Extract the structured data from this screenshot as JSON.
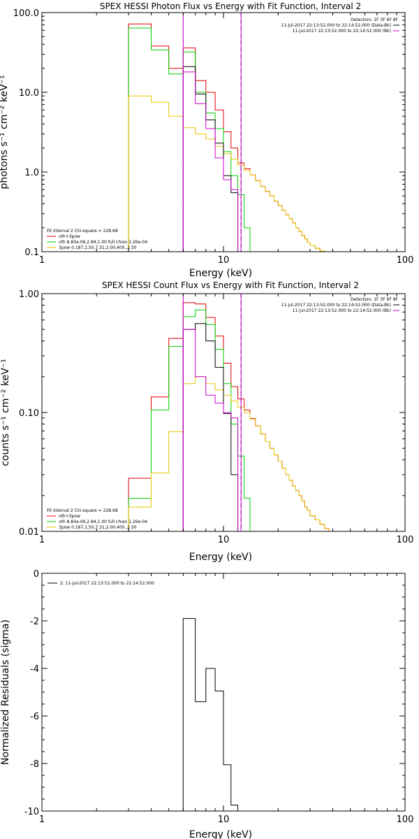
{
  "chart_data": [
    {
      "type": "line",
      "title": "SPEX HESSI Photon Flux vs Energy with Fit Function, Interval 2",
      "xlabel": "Energy (keV)",
      "ylabel": "photons s⁻¹ cm⁻² keV⁻¹",
      "xscale": "log",
      "yscale": "log",
      "xlim": [
        1,
        100
      ],
      "ylim": [
        0.1,
        100
      ],
      "xticks": [
        "1",
        "10",
        "100"
      ],
      "yticks": [
        "0.1",
        "1.0",
        "10.0",
        "100.0"
      ],
      "vlines": [
        {
          "x": 6.0,
          "style": "dotted",
          "color": "#000000"
        },
        {
          "x": 12.5,
          "style": "dashed",
          "color": "#000000"
        },
        {
          "x": 6.0,
          "style": "solid",
          "color": "#d000d0"
        },
        {
          "x": 12.5,
          "style": "solid",
          "color": "#d000d0"
        }
      ],
      "info": {
        "detectors": "Detectors: 1F 3F 6F 8F",
        "lines": [
          {
            "text": "11-Jul-2017 22:13:52.000 to 22:14:52.000 (Data-Bk)",
            "color": "#000000"
          },
          {
            "text": "11-Jul-2017 22:13:52.000 to 22:14:52.000 (Bk)",
            "color": "#d000d0"
          }
        ]
      },
      "legend": {
        "position": "bottom-left",
        "header": "Fit Interval 2   Chi-square = 228.68",
        "entries": [
          {
            "text": "vth+3pow",
            "color": "#e00000"
          },
          {
            "text": "vth 8.83e-06,2.84,1.00  full chian 1.26e-04",
            "color": "#00d000"
          },
          {
            "text": "3pow 0.187,1.50,7.31,2.00,400.,2.50",
            "color": "#e8c800"
          }
        ]
      },
      "series": [
        {
          "color": "#e00000",
          "edges": [
            3,
            4,
            5,
            6,
            7,
            8,
            9,
            10,
            11,
            12,
            13,
            14,
            15,
            16,
            17,
            18,
            19,
            20,
            21,
            22,
            23,
            24,
            25,
            26,
            27,
            28,
            29,
            30,
            32,
            34,
            36,
            38,
            40
          ],
          "values": [
            72,
            38,
            20,
            36,
            14,
            10,
            6,
            3.2,
            2.0,
            1.3,
            1.1,
            0.92,
            0.78,
            0.66,
            0.57,
            0.5,
            0.43,
            0.38,
            0.33,
            0.29,
            0.26,
            0.23,
            0.2,
            0.18,
            0.16,
            0.145,
            0.13,
            0.12,
            0.11,
            0.102,
            0.1,
            0.1
          ]
        },
        {
          "color": "#00d000",
          "edges": [
            3,
            4,
            5,
            6,
            7,
            8,
            9,
            10,
            11,
            12,
            13,
            14,
            15
          ],
          "values": [
            64,
            34,
            17,
            32,
            10,
            5.5,
            3.5,
            1.8,
            0.9,
            0.52,
            0.2,
            0.1
          ]
        },
        {
          "color": "#e8c800",
          "edges": [
            3,
            4,
            5,
            6,
            7,
            8,
            9,
            10,
            11,
            12,
            13,
            14,
            15,
            16,
            17,
            18,
            19,
            20,
            21,
            22,
            23,
            24,
            25,
            26,
            27,
            28,
            29,
            30,
            32,
            34,
            36,
            38,
            40,
            42,
            44
          ],
          "values": [
            9,
            7.5,
            5,
            3.6,
            3,
            2.6,
            2.1,
            1.7,
            1.45,
            1.22,
            1.05,
            0.92,
            0.78,
            0.66,
            0.57,
            0.5,
            0.43,
            0.38,
            0.33,
            0.29,
            0.26,
            0.23,
            0.2,
            0.18,
            0.16,
            0.145,
            0.13,
            0.12,
            0.11,
            0.102,
            0.1,
            0.1,
            0.1,
            0.1
          ]
        },
        {
          "color": "#000000",
          "edges": [
            6,
            7,
            8,
            9,
            10,
            11,
            12
          ],
          "values": [
            21,
            9.5,
            4.5,
            2.3,
            0.9,
            0.55
          ]
        },
        {
          "color": "#d000d0",
          "edges": [
            6,
            7,
            8,
            9,
            10,
            11,
            12
          ],
          "values": [
            18,
            7.2,
            3.5,
            1.5,
            0.8,
            0.6
          ]
        }
      ]
    },
    {
      "type": "line",
      "title": "SPEX HESSI Count Flux vs Energy with Fit Function, Interval 2",
      "xlabel": "Energy (keV)",
      "ylabel": "counts s⁻¹ cm⁻² keV⁻¹",
      "xscale": "log",
      "yscale": "log",
      "xlim": [
        1,
        100
      ],
      "ylim": [
        0.01,
        1.0
      ],
      "xticks": [
        "1",
        "10",
        "100"
      ],
      "yticks": [
        "0.01",
        "0.10",
        "1.00"
      ],
      "vlines": [
        {
          "x": 6.0,
          "style": "dotted",
          "color": "#000000"
        },
        {
          "x": 12.5,
          "style": "dashed",
          "color": "#000000"
        },
        {
          "x": 6.0,
          "style": "solid",
          "color": "#d000d0"
        },
        {
          "x": 12.5,
          "style": "solid",
          "color": "#d000d0"
        }
      ],
      "info": {
        "detectors": "Detectors: 1F 3F 6F 8F",
        "lines": [
          {
            "text": "11-Jul-2017 22:13:52.000 to 22:14:52.000 (Data-Bk)",
            "color": "#000000"
          },
          {
            "text": "11-Jul-2017 22:13:52.000 to 22:14:52.000 (Bk)",
            "color": "#d000d0"
          }
        ]
      },
      "legend": {
        "position": "bottom-left",
        "header": "Fit Interval 2   Chi-square = 228.68",
        "entries": [
          {
            "text": "vth+3pow",
            "color": "#e00000"
          },
          {
            "text": "vth 8.83e-06,2.84,1.00  full chian 1.26e-04",
            "color": "#00d000"
          },
          {
            "text": "3pow 0.187,1.50,7.31,2.00,400.,2.50",
            "color": "#e8c800"
          }
        ]
      },
      "series": [
        {
          "color": "#e00000",
          "edges": [
            3,
            4,
            5,
            6,
            7,
            8,
            9,
            10,
            11,
            12,
            13,
            14,
            15,
            16,
            17,
            18,
            19,
            20,
            21,
            22,
            23,
            24,
            25,
            26,
            27,
            28,
            29,
            30,
            32,
            34,
            36,
            38,
            40,
            42,
            44,
            46,
            48
          ],
          "values": [
            0.028,
            0.135,
            0.42,
            0.84,
            0.82,
            0.63,
            0.44,
            0.26,
            0.165,
            0.13,
            0.105,
            0.089,
            0.077,
            0.066,
            0.057,
            0.05,
            0.044,
            0.039,
            0.034,
            0.03,
            0.027,
            0.024,
            0.022,
            0.02,
            0.018,
            0.016,
            0.015,
            0.0135,
            0.0125,
            0.0115,
            0.0106,
            0.01,
            0.01,
            0.01,
            0.01,
            0.01
          ]
        },
        {
          "color": "#00d000",
          "edges": [
            3,
            4,
            5,
            6,
            7,
            8,
            9,
            10,
            11,
            12,
            13,
            14,
            15
          ],
          "values": [
            0.019,
            0.105,
            0.36,
            0.64,
            0.73,
            0.55,
            0.34,
            0.175,
            0.08,
            0.043,
            0.019,
            0.01
          ]
        },
        {
          "color": "#e8c800",
          "edges": [
            3,
            4,
            5,
            6,
            7,
            8,
            9,
            10,
            11,
            12,
            13,
            14,
            15,
            16,
            17,
            18,
            19,
            20,
            21,
            22,
            23,
            24,
            25,
            26,
            27,
            28,
            29,
            30,
            32,
            34,
            36,
            38,
            40,
            42,
            44,
            46,
            48,
            50
          ],
          "values": [
            0.016,
            0.031,
            0.069,
            0.175,
            0.2,
            0.175,
            0.155,
            0.14,
            0.125,
            0.11,
            0.1,
            0.088,
            0.077,
            0.066,
            0.057,
            0.05,
            0.044,
            0.039,
            0.034,
            0.03,
            0.027,
            0.024,
            0.022,
            0.02,
            0.018,
            0.016,
            0.015,
            0.0135,
            0.0125,
            0.0115,
            0.0106,
            0.01,
            0.01,
            0.01,
            0.01,
            0.01,
            0.01
          ]
        },
        {
          "color": "#000000",
          "edges": [
            6,
            7,
            8,
            9,
            10,
            11,
            12
          ],
          "values": [
            0.5,
            0.56,
            0.4,
            0.24,
            0.098,
            0.03
          ]
        },
        {
          "color": "#d000d0",
          "edges": [
            6,
            7,
            8,
            9,
            10,
            11,
            12
          ],
          "values": [
            0.5,
            0.2,
            0.14,
            0.12,
            0.1,
            0.09
          ]
        }
      ]
    },
    {
      "type": "line",
      "title": "",
      "xlabel": "Energy (keV)",
      "ylabel": "Normalized Residuals (sigma)",
      "xscale": "log",
      "yscale": "linear",
      "xlim": [
        1,
        100
      ],
      "ylim": [
        -10,
        0
      ],
      "xticks": [
        "1",
        "10",
        "100"
      ],
      "yticks": [
        "-10",
        "-8",
        "-6",
        "-4",
        "-2",
        "0"
      ],
      "legend": {
        "position": "top-left",
        "header": "",
        "entries": [
          {
            "text": "2: 11-Jul-2017 22:13:52.000 to 22:14:52.000",
            "color": "#000000"
          }
        ]
      },
      "series": [
        {
          "color": "#000000",
          "edges": [
            6,
            7,
            8,
            9,
            10,
            11,
            12
          ],
          "values": [
            -1.9,
            -5.4,
            -4.0,
            -4.95,
            -8.05,
            -9.75
          ]
        }
      ]
    }
  ]
}
